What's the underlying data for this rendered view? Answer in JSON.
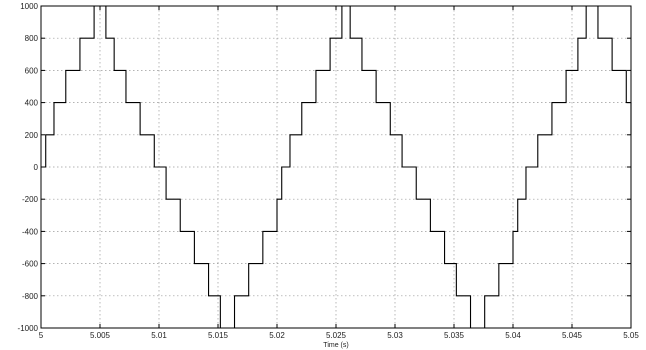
{
  "chart_data": {
    "type": "line",
    "title": "",
    "xlabel": "Time (s)",
    "ylabel": "",
    "xlim": [
      5,
      5.05
    ],
    "ylim": [
      -1000,
      1000
    ],
    "grid": true,
    "x_ticks": [
      5,
      5.005,
      5.01,
      5.015,
      5.02,
      5.025,
      5.03,
      5.035,
      5.04,
      5.045,
      5.05
    ],
    "x_tick_labels": [
      "5",
      "5.005",
      "5.01",
      "5.015",
      "5.02",
      "5.025",
      "5.03",
      "5.035",
      "5.04",
      "5.045",
      "5.05"
    ],
    "y_ticks": [
      -1000,
      -800,
      -600,
      -400,
      -200,
      0,
      200,
      400,
      600,
      800,
      1000
    ],
    "y_tick_labels": [
      "-1000",
      "-800",
      "-600",
      "-400",
      "-200",
      "0",
      "200",
      "400",
      "600",
      "800",
      "1000"
    ],
    "series": [
      {
        "color": "#000000",
        "x": [
          5,
          5.0004,
          5.0011,
          5.0021,
          5.0033,
          5.0045,
          5.0055,
          5.0062,
          5.0072,
          5.0084,
          5.0096,
          5.0106,
          5.0118,
          5.013,
          5.0142,
          5.0152,
          5.0164,
          5.0176,
          5.0188,
          5.02,
          5.0204,
          5.0211,
          5.0221,
          5.0233,
          5.0245,
          5.0255,
          5.0262,
          5.0272,
          5.0284,
          5.0296,
          5.0306,
          5.0318,
          5.033,
          5.0342,
          5.0352,
          5.0364,
          5.0376,
          5.0388,
          5.04,
          5.0404,
          5.0411,
          5.0421,
          5.0433,
          5.0445,
          5.0455,
          5.0462,
          5.0472,
          5.0484,
          5.0496,
          5.05
        ],
        "y": [
          0,
          200,
          400,
          600,
          800,
          1000,
          800,
          600,
          400,
          200,
          0,
          -200,
          -400,
          -600,
          -800,
          -1000,
          -800,
          -600,
          -400,
          -200,
          0,
          200,
          400,
          600,
          800,
          1000,
          800,
          600,
          400,
          200,
          0,
          -200,
          -400,
          -600,
          -800,
          -1000,
          -800,
          -600,
          -400,
          -200,
          0,
          200,
          400,
          600,
          800,
          1000,
          800,
          600,
          400,
          200
        ]
      }
    ]
  }
}
